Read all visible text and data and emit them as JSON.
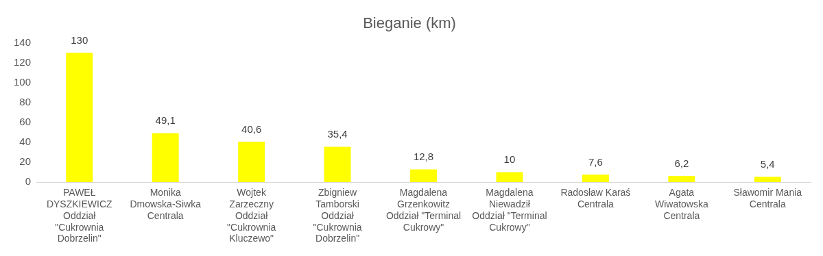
{
  "chart_data": {
    "type": "bar",
    "title": "Bieganie (km)",
    "categories": [
      "PAWEŁ DYSZKIEWICZ Oddział \"Cukrownia Dobrzelin\"",
      "Monika Dmowska-Siwka Centrala",
      "Wojtek Zarzeczny Oddział \"Cukrownia Kluczewo\"",
      "Zbigniew Tamborski Oddział \"Cukrownia Dobrzelin\"",
      "Magdalena Grzenkowitz Oddział \"Terminal Cukrowy\"",
      "Magdalena Niewadził Oddział \"Terminal Cukrowy\"",
      "Radosław Karaś Centrala",
      "Agata Wiwatowska Centrala",
      "Sławomir Mania Centrala"
    ],
    "values": [
      130,
      49.1,
      40.6,
      35.4,
      12.8,
      10,
      7.6,
      6.2,
      5.4
    ],
    "value_labels": [
      "130",
      "49,1",
      "40,6",
      "35,4",
      "12,8",
      "10",
      "7,6",
      "6,2",
      "5,4"
    ],
    "color": "#ffff00",
    "ylim": [
      0,
      140
    ],
    "yticks": [
      0,
      20,
      40,
      60,
      80,
      100,
      120,
      140
    ],
    "grid": false,
    "legend": false
  }
}
